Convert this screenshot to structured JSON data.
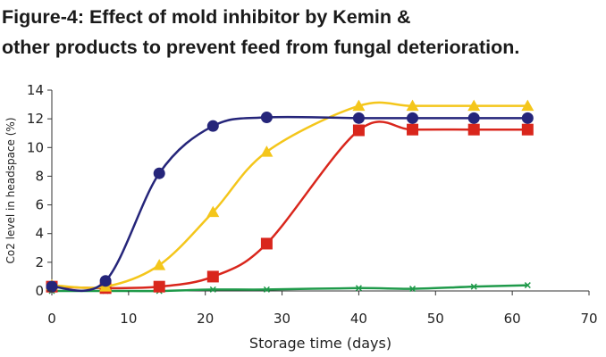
{
  "title_lines": [
    "Figure-4: Effect of mold inhibitor by Kemin &",
    "other products to prevent feed from fungal deterioration."
  ],
  "chart_data": {
    "type": "line",
    "title": "Figure-4: Effect of mold inhibitor by Kemin & other products to prevent feed from fungal deterioration.",
    "xlabel": "Storage time (days)",
    "ylabel": "Co2 level in headspace (%)",
    "xlim": [
      0,
      70
    ],
    "ylim": [
      0,
      14
    ],
    "xticks": [
      0,
      10,
      20,
      30,
      40,
      50,
      60,
      70
    ],
    "yticks": [
      0,
      2,
      4,
      6,
      8,
      10,
      12,
      14
    ],
    "grid": false,
    "legend": "none",
    "series": [
      {
        "marker": "circle",
        "color": "#25257a",
        "x": [
          0,
          7,
          14,
          21,
          28,
          40,
          47,
          55,
          62
        ],
        "y": [
          0.3,
          0.7,
          8.2,
          11.5,
          12.1,
          12.05,
          12.05,
          12.05,
          12.05
        ]
      },
      {
        "marker": "triangle",
        "color": "#f4c61b",
        "x": [
          0,
          7,
          14,
          21,
          28,
          40,
          47,
          55,
          62
        ],
        "y": [
          0.4,
          0.3,
          1.8,
          5.5,
          9.7,
          12.9,
          12.9,
          12.9,
          12.9
        ]
      },
      {
        "marker": "square",
        "color": "#d9261c",
        "x": [
          0,
          7,
          14,
          21,
          28,
          40,
          47,
          55,
          62
        ],
        "y": [
          0.3,
          0.2,
          0.3,
          1.0,
          3.3,
          11.2,
          11.25,
          11.25,
          11.25
        ]
      },
      {
        "marker": "x",
        "color": "#1f9a4a",
        "x": [
          0,
          7,
          14,
          21,
          28,
          40,
          47,
          55,
          62
        ],
        "y": [
          0.0,
          0.0,
          0.0,
          0.1,
          0.1,
          0.2,
          0.15,
          0.3,
          0.4
        ]
      }
    ]
  }
}
